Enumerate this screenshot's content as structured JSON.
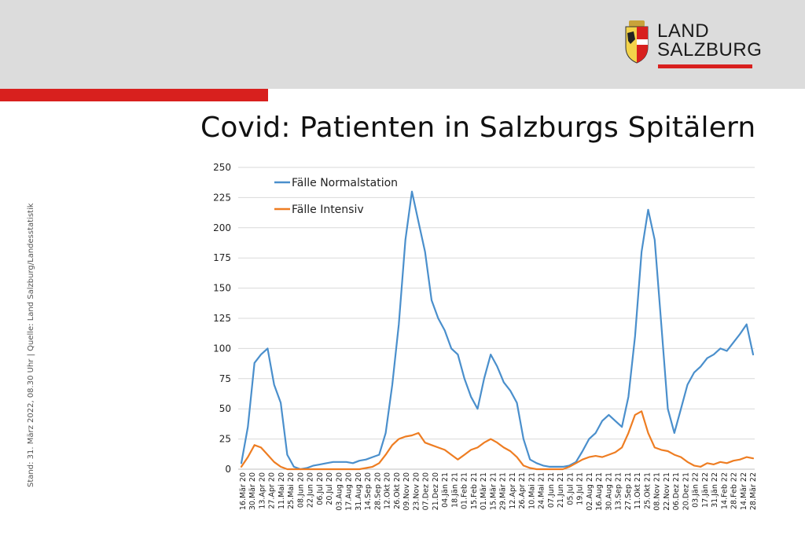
{
  "header": {
    "logo_line1": "LAND",
    "logo_line2": "SALZBURG",
    "colors": {
      "band": "#dcdcdc",
      "accent_red": "#d8201e"
    }
  },
  "title": "Covid: Patienten in Salzburgs Spitälern",
  "side_note": "Stand: 31. März 2022, 08.30 Uhr | Quelle: Land Salzburg/Landesstatistik",
  "chart_data": {
    "type": "line",
    "ylim": [
      0,
      250
    ],
    "yticks": [
      0,
      25,
      50,
      75,
      100,
      125,
      150,
      175,
      200,
      225,
      250
    ],
    "grid": true,
    "legend_position": "top-left",
    "x_labels": [
      "16.Mär 20",
      "30.Mär 20",
      "13.Apr 20",
      "27.Apr 20",
      "11.Mai 20",
      "25.Mai 20",
      "08.Jun 20",
      "22.Jun 20",
      "06.Jul 20",
      "20.Jul 20",
      "03.Aug 20",
      "17.Aug 20",
      "31.Aug 20",
      "14.Sep 20",
      "28.Sep 20",
      "12.Okt 20",
      "26.Okt 20",
      "09.Nov 20",
      "23.Nov 20",
      "07.Dez 20",
      "21.Dez 20",
      "04.Jän 21",
      "18.Jän 21",
      "01.Feb 21",
      "15.Feb 21",
      "01.Mär 21",
      "15.Mär 21",
      "29.Mär 21",
      "12.Apr 21",
      "26.Apr 21",
      "10.Mai 21",
      "24.Mai 21",
      "07.Jun 21",
      "21.Jun 21",
      "05.Jul 21",
      "19.Jul 21",
      "02.Aug 21",
      "16.Aug 21",
      "30.Aug 21",
      "13.Sep 21",
      "27.Sep 21",
      "11.Okt 21",
      "25.Okt 21",
      "08.Nov 21",
      "22.Nov 21",
      "06.Dez 21",
      "20.Dez 21",
      "03.Jän 22",
      "17.Jän 22",
      "31.Jän 22",
      "14.Feb 22",
      "28.Feb 22",
      "14.Mär 22",
      "28.Mär 22"
    ],
    "series": [
      {
        "name": "Fälle Normalstation",
        "color": "#4a8fcc",
        "values": [
          5,
          35,
          88,
          95,
          100,
          70,
          55,
          12,
          2,
          0,
          1,
          3,
          4,
          5,
          6,
          6,
          6,
          5,
          7,
          8,
          10,
          12,
          30,
          70,
          120,
          190,
          230,
          205,
          180,
          140,
          125,
          115,
          100,
          95,
          75,
          60,
          50,
          75,
          95,
          85,
          72,
          65,
          55,
          25,
          8,
          5,
          3,
          2,
          2,
          2,
          3,
          6,
          15,
          25,
          30,
          40,
          45,
          40,
          35,
          60,
          110,
          180,
          215,
          190,
          120,
          50,
          30,
          50,
          70,
          80,
          85,
          92,
          95,
          100,
          98,
          105,
          112,
          120,
          95
        ]
      },
      {
        "name": "Fälle Intensiv",
        "color": "#ee7d22",
        "values": [
          2,
          10,
          20,
          18,
          12,
          6,
          2,
          0,
          0,
          0,
          0,
          0,
          0,
          0,
          0,
          0,
          0,
          0,
          0,
          1,
          2,
          5,
          12,
          20,
          25,
          27,
          28,
          30,
          22,
          20,
          18,
          16,
          12,
          8,
          12,
          16,
          18,
          22,
          25,
          22,
          18,
          15,
          10,
          3,
          1,
          0,
          0,
          0,
          0,
          0,
          2,
          5,
          8,
          10,
          11,
          10,
          12,
          14,
          18,
          30,
          45,
          48,
          30,
          18,
          16,
          15,
          12,
          10,
          6,
          3,
          2,
          5,
          4,
          6,
          5,
          7,
          8,
          10,
          9
        ]
      }
    ]
  }
}
